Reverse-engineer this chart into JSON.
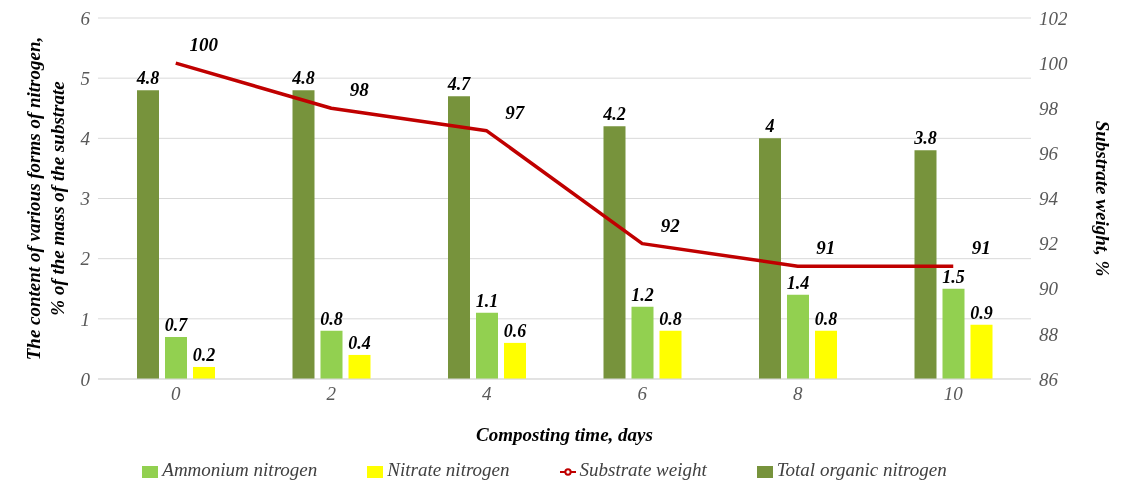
{
  "chart_data": {
    "type": "bar",
    "xlabel": "Composting time,  days",
    "ylabel": "The content of various forms of nitrogen, % of the mass of the  substrate",
    "y2label": "Substrate weight, %",
    "categories": [
      "0",
      "2",
      "4",
      "6",
      "8",
      "10"
    ],
    "series": [
      {
        "name": "Total organic  nitrogen",
        "color": "#77933c",
        "values": [
          4.8,
          4.8,
          4.7,
          4.2,
          4,
          3.8
        ]
      },
      {
        "name": "Ammonium nitrogen",
        "color": "#92d050",
        "values": [
          0.7,
          0.8,
          1.1,
          1.2,
          1.4,
          1.5
        ]
      },
      {
        "name": "Nitrate nitrogen",
        "color": "#ffff00",
        "values": [
          0.2,
          0.4,
          0.6,
          0.8,
          0.8,
          0.9
        ]
      },
      {
        "name": "Substrate weight",
        "type": "line",
        "axis": "y2",
        "color": "#c00000",
        "values": [
          100,
          98,
          97,
          92,
          91,
          91
        ]
      }
    ],
    "ylim": [
      0,
      6
    ],
    "yticks": [
      0,
      1,
      2,
      3,
      4,
      5,
      6
    ],
    "y2lim": [
      86,
      102
    ],
    "y2ticks": [
      86,
      88,
      90,
      92,
      94,
      96,
      98,
      100,
      102
    ],
    "grid": "y",
    "legend": "bottom",
    "data_labels": true
  }
}
